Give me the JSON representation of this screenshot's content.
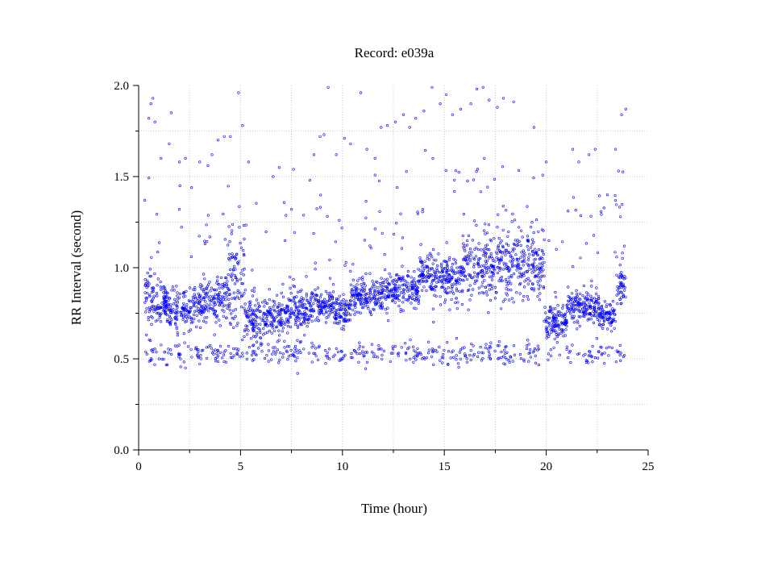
{
  "chart_data": {
    "type": "scatter",
    "title": "Record:  e039a",
    "xlabel": "Time (hour)",
    "ylabel": "RR Interval (second)",
    "xlim": [
      0,
      25
    ],
    "ylim": [
      0,
      2
    ],
    "xticks": [
      0,
      5,
      10,
      15,
      20,
      25
    ],
    "yticks": [
      0.0,
      0.5,
      1.0,
      1.5,
      2.0
    ],
    "xtick_labels": [
      "0",
      "5",
      "10",
      "15",
      "20",
      "25"
    ],
    "ytick_labels": [
      "0.0",
      "0.5",
      "1.0",
      "1.5",
      "2.0"
    ],
    "grid": true,
    "marker_color": "#0000ff",
    "segments": [
      {
        "x": [
          0.3,
          0.8
        ],
        "y": [
          0.85,
          0.1
        ]
      },
      {
        "x": [
          0.8,
          1.8
        ],
        "y": [
          0.8,
          0.06
        ]
      },
      {
        "x": [
          1.8,
          2.6
        ],
        "y": [
          0.78,
          0.07
        ]
      },
      {
        "x": [
          2.6,
          3.8
        ],
        "y": [
          0.8,
          0.06
        ]
      },
      {
        "x": [
          3.8,
          4.4
        ],
        "y": [
          0.84,
          0.07
        ]
      },
      {
        "x": [
          4.4,
          5.2
        ],
        "y": [
          0.92,
          0.15
        ]
      },
      {
        "x": [
          5.2,
          6.3
        ],
        "y": [
          0.72,
          0.07
        ]
      },
      {
        "x": [
          6.3,
          7.4
        ],
        "y": [
          0.73,
          0.06
        ]
      },
      {
        "x": [
          7.4,
          8.4
        ],
        "y": [
          0.77,
          0.06
        ]
      },
      {
        "x": [
          8.4,
          9.6
        ],
        "y": [
          0.8,
          0.05
        ]
      },
      {
        "x": [
          9.6,
          10.4
        ],
        "y": [
          0.76,
          0.05
        ]
      },
      {
        "x": [
          10.4,
          12.2
        ],
        "y": [
          0.84,
          0.05
        ]
      },
      {
        "x": [
          12.2,
          13.8
        ],
        "y": [
          0.88,
          0.05
        ]
      },
      {
        "x": [
          13.8,
          14.4
        ],
        "y": [
          0.98,
          0.06
        ]
      },
      {
        "x": [
          14.4,
          15.9
        ],
        "y": [
          0.93,
          0.07
        ]
      },
      {
        "x": [
          15.9,
          17.5
        ],
        "y": [
          1.0,
          0.1
        ]
      },
      {
        "x": [
          17.5,
          19.9
        ],
        "y": [
          1.02,
          0.1
        ]
      },
      {
        "x": [
          19.9,
          21.0
        ],
        "y": [
          0.7,
          0.05
        ]
      },
      {
        "x": [
          21.0,
          22.6
        ],
        "y": [
          0.79,
          0.05
        ]
      },
      {
        "x": [
          22.6,
          23.4
        ],
        "y": [
          0.74,
          0.04
        ]
      },
      {
        "x": [
          23.4,
          23.9
        ],
        "y": [
          0.9,
          0.05
        ]
      }
    ],
    "point_density": 110,
    "ectopic_low": {
      "xrange": [
        0.3,
        23.9
      ],
      "y": 0.53,
      "spread": 0.03,
      "count": 420
    },
    "outliers": [
      [
        0.3,
        1.37
      ],
      [
        0.5,
        1.82
      ],
      [
        0.6,
        1.9
      ],
      [
        0.7,
        1.93
      ],
      [
        0.8,
        1.8
      ],
      [
        1.1,
        1.6
      ],
      [
        1.5,
        1.68
      ],
      [
        1.6,
        1.85
      ],
      [
        2.0,
        1.58
      ],
      [
        2.3,
        1.6
      ],
      [
        2.6,
        1.44
      ],
      [
        3.0,
        1.58
      ],
      [
        3.4,
        1.56
      ],
      [
        3.6,
        1.62
      ],
      [
        3.9,
        1.7
      ],
      [
        4.2,
        1.72
      ],
      [
        4.5,
        1.72
      ],
      [
        4.9,
        1.96
      ],
      [
        5.1,
        1.78
      ],
      [
        5.4,
        1.58
      ],
      [
        6.6,
        1.5
      ],
      [
        6.9,
        1.55
      ],
      [
        7.6,
        1.54
      ],
      [
        8.4,
        1.48
      ],
      [
        8.6,
        1.62
      ],
      [
        8.9,
        1.72
      ],
      [
        9.1,
        1.73
      ],
      [
        9.3,
        1.99
      ],
      [
        9.7,
        1.62
      ],
      [
        10.1,
        1.71
      ],
      [
        10.4,
        1.68
      ],
      [
        10.9,
        1.96
      ],
      [
        11.2,
        1.65
      ],
      [
        11.6,
        1.6
      ],
      [
        11.9,
        1.77
      ],
      [
        12.2,
        1.78
      ],
      [
        12.6,
        1.8
      ],
      [
        13.0,
        1.84
      ],
      [
        13.3,
        1.77
      ],
      [
        13.6,
        1.82
      ],
      [
        14.0,
        1.86
      ],
      [
        14.4,
        1.99
      ],
      [
        14.8,
        1.9
      ],
      [
        15.1,
        1.95
      ],
      [
        15.4,
        1.84
      ],
      [
        15.8,
        1.87
      ],
      [
        16.3,
        1.9
      ],
      [
        16.6,
        1.98
      ],
      [
        16.9,
        1.99
      ],
      [
        17.2,
        1.92
      ],
      [
        17.6,
        1.88
      ],
      [
        17.9,
        1.93
      ],
      [
        18.4,
        1.91
      ],
      [
        19.4,
        1.77
      ],
      [
        20.0,
        1.58
      ],
      [
        21.3,
        1.65
      ],
      [
        21.6,
        1.58
      ],
      [
        22.1,
        1.62
      ],
      [
        22.4,
        1.65
      ],
      [
        23.0,
        1.4
      ],
      [
        23.4,
        1.65
      ],
      [
        23.7,
        1.84
      ],
      [
        23.9,
        1.87
      ],
      [
        1.0,
        0.5
      ],
      [
        2.3,
        0.45
      ],
      [
        7.8,
        0.42
      ],
      [
        18.2,
        0.48
      ],
      [
        21.2,
        0.48
      ]
    ]
  }
}
